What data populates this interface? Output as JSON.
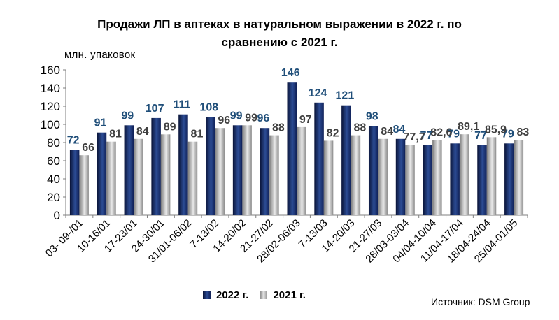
{
  "chart_data": {
    "type": "bar",
    "title_line1": "Продажи ЛП в аптеках в натуральном выражении в 2022 г. по",
    "title_line2": "сравнению с 2021 г.",
    "ylabel": "млн.  упаковок",
    "ylim": [
      0,
      160
    ],
    "yticks": [
      "0",
      "20",
      "40",
      "60",
      "80",
      "100",
      "120",
      "140",
      "160"
    ],
    "grid": false,
    "legend_position": "bottom",
    "categories": [
      "03- 09-/01",
      "10-16/01",
      "17-23/01",
      "24-30/01",
      "31/01-06/02",
      "7-13/02",
      "14-20/02",
      "21-27/02",
      "28/02-06/03",
      "7-13/03",
      "14-20/03",
      "21-27/03",
      "28/03-03/04",
      "04/04-10/04",
      "11/04-17/04",
      "18/04-24/04",
      "25/04-01/05"
    ],
    "series": [
      {
        "name": "2022 г.",
        "color": "#1b2f6b",
        "label_color": "#1f4e79",
        "values": [
          72,
          91,
          99,
          107,
          111,
          108,
          99,
          96,
          146,
          124,
          121,
          98,
          84,
          77,
          79,
          77,
          79
        ],
        "labels": [
          "72",
          "91",
          "99",
          "107",
          "111",
          "108",
          "99",
          "96",
          "146",
          "124",
          "121",
          "98",
          "84",
          "77",
          "79",
          "77",
          "79"
        ]
      },
      {
        "name": "2021 г.",
        "color": "#b0b0b0",
        "label_color": "#404040",
        "values": [
          66,
          81,
          84,
          89,
          81,
          96,
          99,
          88,
          97,
          82,
          88,
          84,
          77.7,
          82.6,
          89.1,
          85.9,
          83
        ],
        "labels": [
          "66",
          "81",
          "84",
          "89",
          "81",
          "96",
          "99",
          "88",
          "97",
          "82",
          "88",
          "84",
          "77,7",
          "82,6",
          "89,1",
          "85,9",
          "83"
        ]
      }
    ]
  },
  "legend": {
    "item_2022": "2022 г.",
    "item_2021": "2021 г."
  },
  "source": "Источник: DSM Group"
}
